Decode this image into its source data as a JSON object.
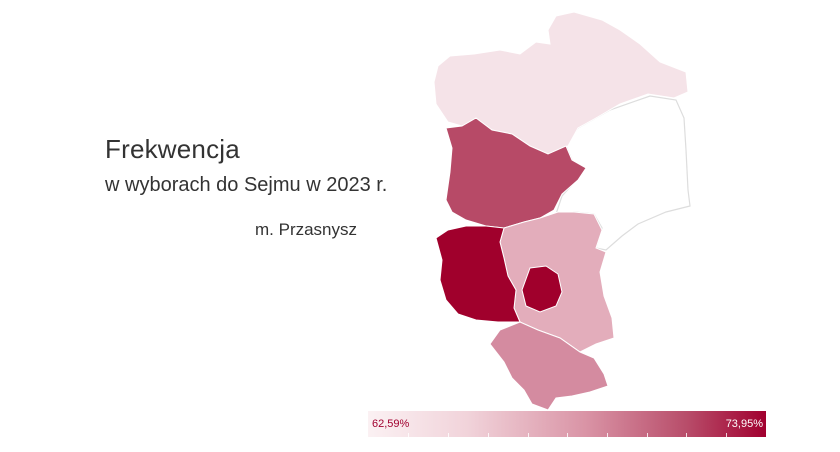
{
  "header": {
    "title": "Frekwencja",
    "subtitle": "w wyborach do Sejmu w 2023 r.",
    "place": "m. Przasnysz"
  },
  "legend": {
    "min_label": "62,59%",
    "max_label": "73,95%",
    "min_value": 62.59,
    "max_value": 73.95,
    "color_low": "#fbf1f3",
    "color_high": "#a1002f"
  },
  "colors": {
    "north": "#f5e3e8",
    "north_west": "#b74a67",
    "west": "#a0002c",
    "central": "#e3adbb",
    "city": "#a0002c",
    "south": "#d48ba0",
    "east": "#ffffff",
    "border": "#dddddd"
  }
}
